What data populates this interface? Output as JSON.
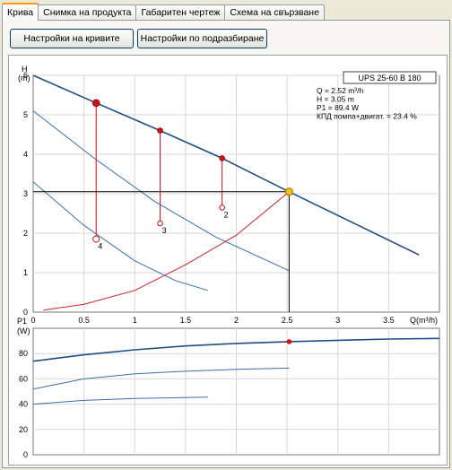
{
  "tabs": [
    {
      "label": "Крива",
      "active": true
    },
    {
      "label": "Снимка на продукта",
      "active": false
    },
    {
      "label": "Габаритен чертеж",
      "active": false
    },
    {
      "label": "Схема на свързване",
      "active": false
    }
  ],
  "buttons": {
    "curve_settings": "Настройки на кривите",
    "default_settings": "Настройки по подразбиране"
  },
  "colors": {
    "curve_max": "#1f4e86",
    "curve_other": "#3a6fa8",
    "system_curve": "#cc2222",
    "duty_point": "#f5c000",
    "marker": "#cc1111"
  },
  "chart_data": [
    {
      "type": "line",
      "model": "UPS 25-60 B 180",
      "readout": {
        "q": "Q = 2.52 m³/h",
        "h": "H = 3.05 m",
        "p1": "P1 = 89.4 W",
        "eff": "КПД помпа+двигат. = 23.4 %"
      },
      "ylabel": "H",
      "yunit": "(m)",
      "xlabel": "Q(m³/h)",
      "xlim": [
        0,
        4
      ],
      "ylim": [
        0,
        6
      ],
      "xticks": [
        "0",
        "0.5",
        "1",
        "1.5",
        "2",
        "2.5",
        "3",
        "3.5"
      ],
      "yticks": [
        "0",
        "1",
        "2",
        "3",
        "4",
        "5",
        "6"
      ],
      "grid": true,
      "series": [
        {
          "name": "",
          "speed": 1,
          "x": [
            0,
            0.62,
            1.25,
            1.86,
            2.52,
            3.2,
            3.8
          ],
          "y": [
            6.0,
            5.3,
            4.6,
            3.9,
            3.05,
            2.2,
            1.45
          ]
        },
        {
          "name": "",
          "speed": 2,
          "x": [
            0,
            0.6,
            1.2,
            1.8,
            2.52
          ],
          "y": [
            5.1,
            3.9,
            2.8,
            1.9,
            1.05
          ]
        },
        {
          "name": "",
          "speed": 3,
          "x": [
            0,
            0.5,
            1.0,
            1.4,
            1.72
          ],
          "y": [
            3.3,
            2.2,
            1.3,
            0.8,
            0.55
          ]
        }
      ],
      "system_curve": {
        "x": [
          0.1,
          0.5,
          1.0,
          1.5,
          2.0,
          2.52
        ],
        "y": [
          0.05,
          0.2,
          0.55,
          1.2,
          1.95,
          3.05
        ]
      },
      "duty_point": {
        "x": 2.52,
        "y": 3.05
      },
      "speed_markers": [
        {
          "label": "4",
          "x": 0.62,
          "y_top": 5.3,
          "y_bottom": 1.85
        },
        {
          "label": "3",
          "x": 1.25,
          "y_top": 4.6,
          "y_bottom": 2.25
        },
        {
          "label": "2",
          "x": 1.86,
          "y_top": 3.9,
          "y_bottom": 2.65
        }
      ]
    },
    {
      "type": "line",
      "ylabel": "P1",
      "yunit": "(W)",
      "xlim": [
        0,
        4
      ],
      "ylim": [
        0,
        100
      ],
      "yticks": [
        "0",
        "20",
        "40",
        "60",
        "80"
      ],
      "grid": true,
      "series": [
        {
          "name": "",
          "x": [
            0,
            0.5,
            1.0,
            1.5,
            2.0,
            2.52,
            3.0,
            3.5,
            4.0
          ],
          "y": [
            74,
            79,
            83,
            86,
            88,
            89.4,
            90.5,
            91.5,
            92
          ]
        },
        {
          "name": "",
          "x": [
            0,
            0.5,
            1.0,
            1.5,
            2.0,
            2.52
          ],
          "y": [
            52,
            60,
            64,
            66,
            67.5,
            68.5
          ]
        },
        {
          "name": "",
          "x": [
            0,
            0.5,
            1.0,
            1.5,
            1.72
          ],
          "y": [
            40,
            43,
            44.5,
            45.2,
            45.5
          ]
        }
      ],
      "duty_point": {
        "x": 2.52,
        "y": 89.4
      }
    }
  ]
}
